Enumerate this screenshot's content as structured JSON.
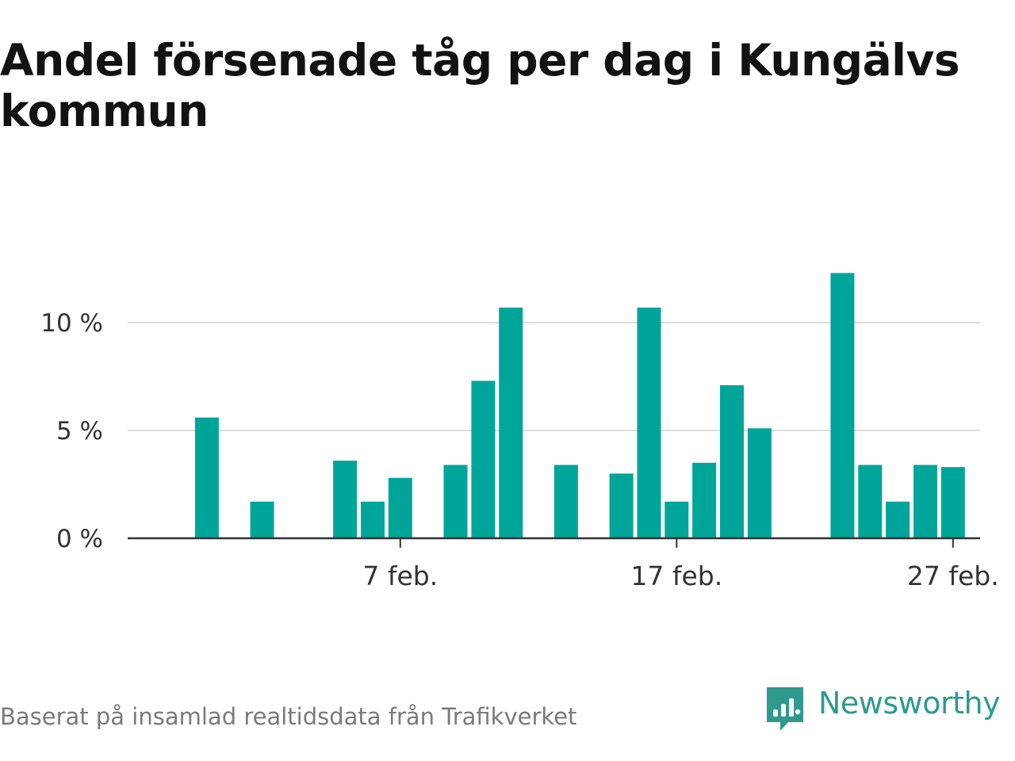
{
  "title": "Andel försenade tåg per dag i Kungälvs kommun",
  "source": "Baserat på insamlad realtidsdata från Trafikverket",
  "brand": {
    "name": "Newsworthy",
    "logo_icon": "newsworthy-chart-bubble-icon"
  },
  "colors": {
    "bar": "#00a59a",
    "grid": "#dddddd",
    "axis": "#333333",
    "title": "#121212",
    "source": "#7a7a7a",
    "brand": "#2f9a8e"
  },
  "chart_data": {
    "type": "bar",
    "title": "Andel försenade tåg per dag i Kungälvs kommun",
    "xlabel": "",
    "ylabel": "",
    "x": [
      "2024-01-30",
      "2024-01-31",
      "2024-02-01",
      "2024-02-02",
      "2024-02-03",
      "2024-02-04",
      "2024-02-05",
      "2024-02-06",
      "2024-02-07",
      "2024-02-08",
      "2024-02-09",
      "2024-02-10",
      "2024-02-11",
      "2024-02-12",
      "2024-02-13",
      "2024-02-14",
      "2024-02-15",
      "2024-02-16",
      "2024-02-17",
      "2024-02-18",
      "2024-02-19",
      "2024-02-20",
      "2024-02-21",
      "2024-02-22",
      "2024-02-23",
      "2024-02-24",
      "2024-02-25",
      "2024-02-26",
      "2024-02-27",
      "2024-02-28",
      "2024-02-29"
    ],
    "values": [
      null,
      5.6,
      null,
      1.7,
      null,
      null,
      3.6,
      1.7,
      2.8,
      null,
      3.4,
      7.3,
      10.7,
      null,
      3.4,
      null,
      3.0,
      10.7,
      1.7,
      3.5,
      7.1,
      5.1,
      null,
      null,
      12.3,
      3.4,
      1.7,
      3.4,
      3.3,
      null,
      null
    ],
    "ylim": [
      0,
      12.5
    ],
    "y_ticks": [
      {
        "value": 0,
        "label": "0 %"
      },
      {
        "value": 5,
        "label": "5 %"
      },
      {
        "value": 10,
        "label": "10 %"
      }
    ],
    "x_ticks": [
      {
        "date": "2024-02-07",
        "label": "7 feb."
      },
      {
        "date": "2024-02-17",
        "label": "17 feb."
      },
      {
        "date": "2024-02-27",
        "label": "27 feb."
      }
    ],
    "grid": true,
    "legend": "none"
  }
}
